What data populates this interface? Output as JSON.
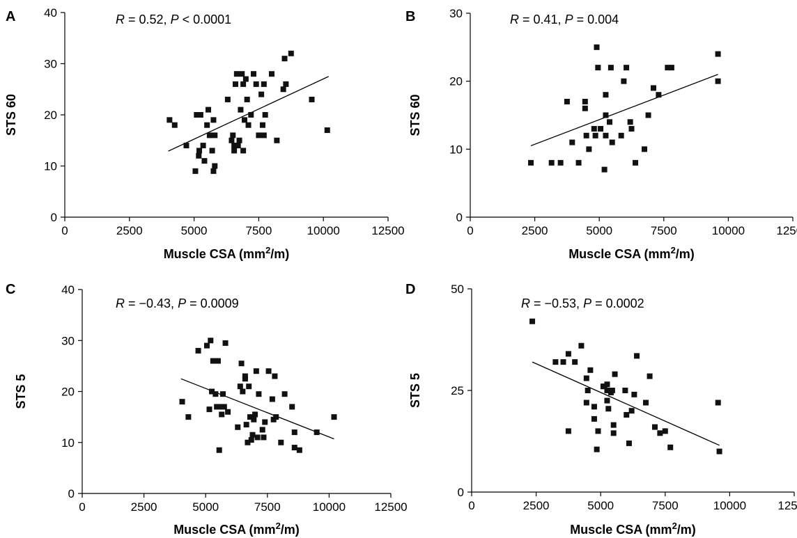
{
  "chart_data": [
    {
      "type": "scatter",
      "panel_label": "A",
      "annotation": {
        "r_label": "R",
        "r_text": " = 0.52, ",
        "p_label": "P",
        "p_text": " < 0.0001"
      },
      "xlabel": {
        "pre": "Muscle CSA (mm",
        "sup": "2",
        "post": "/m)"
      },
      "ylabel": "STS 60",
      "xlim": [
        0,
        12500
      ],
      "ylim": [
        0,
        40
      ],
      "xticks": [
        0,
        2500,
        5000,
        7500,
        10000,
        12500
      ],
      "yticks": [
        0,
        10,
        20,
        30,
        40
      ],
      "points": [
        [
          4050,
          19
        ],
        [
          4250,
          18
        ],
        [
          4700,
          14
        ],
        [
          5050,
          9
        ],
        [
          5100,
          20
        ],
        [
          5180,
          12
        ],
        [
          5200,
          13
        ],
        [
          5250,
          20
        ],
        [
          5350,
          14
        ],
        [
          5400,
          11
        ],
        [
          5500,
          18
        ],
        [
          5550,
          21
        ],
        [
          5600,
          16
        ],
        [
          5700,
          13
        ],
        [
          5750,
          19
        ],
        [
          5750,
          9
        ],
        [
          5800,
          10
        ],
        [
          5800,
          16
        ],
        [
          6300,
          23
        ],
        [
          6450,
          15
        ],
        [
          6500,
          16
        ],
        [
          6550,
          14
        ],
        [
          6550,
          13
        ],
        [
          6600,
          26
        ],
        [
          6650,
          28
        ],
        [
          6700,
          14
        ],
        [
          6750,
          15
        ],
        [
          6800,
          21
        ],
        [
          6850,
          28
        ],
        [
          6900,
          26
        ],
        [
          6900,
          13
        ],
        [
          6950,
          19
        ],
        [
          7000,
          27
        ],
        [
          7050,
          23
        ],
        [
          7100,
          18
        ],
        [
          7200,
          20
        ],
        [
          7300,
          28
        ],
        [
          7400,
          26
        ],
        [
          7500,
          16
        ],
        [
          7600,
          24
        ],
        [
          7650,
          18
        ],
        [
          7700,
          16
        ],
        [
          7750,
          20
        ],
        [
          7700,
          26
        ],
        [
          8000,
          28
        ],
        [
          8200,
          15
        ],
        [
          8450,
          25
        ],
        [
          8500,
          31
        ],
        [
          8550,
          26
        ],
        [
          8750,
          32
        ],
        [
          9550,
          23
        ],
        [
          10150,
          17
        ]
      ],
      "fit": {
        "x": [
          4000,
          10200
        ],
        "y": [
          12.9,
          27.5
        ]
      }
    },
    {
      "type": "scatter",
      "panel_label": "B",
      "annotation": {
        "r_label": "R",
        "r_text": " = 0.41, ",
        "p_label": "P",
        "p_text": " = 0.004"
      },
      "xlabel": {
        "pre": "Muscle CSA (mm",
        "sup": "2",
        "post": "/m)"
      },
      "ylabel": "STS 60",
      "xlim": [
        0,
        12500
      ],
      "ylim": [
        0,
        30
      ],
      "xticks": [
        0,
        2500,
        5000,
        7500,
        10000,
        12500
      ],
      "yticks": [
        0,
        10,
        20,
        30
      ],
      "points": [
        [
          2350,
          8
        ],
        [
          3150,
          8
        ],
        [
          3500,
          8
        ],
        [
          3750,
          17
        ],
        [
          3950,
          11
        ],
        [
          4200,
          8
        ],
        [
          4450,
          17
        ],
        [
          4450,
          16
        ],
        [
          4500,
          12
        ],
        [
          4600,
          10
        ],
        [
          4800,
          13
        ],
        [
          4850,
          12
        ],
        [
          4900,
          25
        ],
        [
          4950,
          22
        ],
        [
          5050,
          13
        ],
        [
          5200,
          7
        ],
        [
          5250,
          15
        ],
        [
          5250,
          18
        ],
        [
          5250,
          12
        ],
        [
          5400,
          14
        ],
        [
          5450,
          22
        ],
        [
          5500,
          11
        ],
        [
          5850,
          12
        ],
        [
          5950,
          20
        ],
        [
          6050,
          22
        ],
        [
          6200,
          14
        ],
        [
          6250,
          13
        ],
        [
          6400,
          8
        ],
        [
          6750,
          10
        ],
        [
          6900,
          15
        ],
        [
          7100,
          19
        ],
        [
          7300,
          18
        ],
        [
          7650,
          22
        ],
        [
          7800,
          22
        ],
        [
          9600,
          24
        ],
        [
          9600,
          20
        ]
      ],
      "fit": {
        "x": [
          2350,
          9600
        ],
        "y": [
          10.5,
          21.0
        ]
      }
    },
    {
      "type": "scatter",
      "panel_label": "C",
      "annotation": {
        "r_label": "R",
        "r_text": " = −0.43, ",
        "p_label": "P",
        "p_text": " = 0.0009"
      },
      "xlabel": {
        "pre": "Muscle CSA (mm",
        "sup": "2",
        "post": "/m)"
      },
      "ylabel": "STS 5",
      "xlim": [
        0,
        12500
      ],
      "ylim": [
        0,
        40
      ],
      "xticks": [
        0,
        2500,
        5000,
        7500,
        10000,
        12500
      ],
      "yticks": [
        0,
        10,
        20,
        30,
        40
      ],
      "points": [
        [
          4050,
          18
        ],
        [
          4300,
          15
        ],
        [
          4700,
          28
        ],
        [
          5050,
          29
        ],
        [
          5150,
          16.5
        ],
        [
          5200,
          30
        ],
        [
          5250,
          20
        ],
        [
          5300,
          26
        ],
        [
          5400,
          19.5
        ],
        [
          5450,
          17
        ],
        [
          5500,
          26
        ],
        [
          5550,
          8.5
        ],
        [
          5600,
          17
        ],
        [
          5650,
          15.5
        ],
        [
          5700,
          19.5
        ],
        [
          5750,
          17
        ],
        [
          5800,
          29.5
        ],
        [
          5900,
          16
        ],
        [
          6300,
          13
        ],
        [
          6400,
          21
        ],
        [
          6450,
          25.5
        ],
        [
          6500,
          20
        ],
        [
          6600,
          23
        ],
        [
          6600,
          22.5
        ],
        [
          6650,
          13.5
        ],
        [
          6700,
          10
        ],
        [
          6750,
          21
        ],
        [
          6800,
          15
        ],
        [
          6850,
          10.5
        ],
        [
          6900,
          11.5
        ],
        [
          6950,
          14.5
        ],
        [
          7000,
          15.5
        ],
        [
          7050,
          24
        ],
        [
          7100,
          11
        ],
        [
          7150,
          19.5
        ],
        [
          7300,
          12.5
        ],
        [
          7350,
          11
        ],
        [
          7400,
          14
        ],
        [
          7550,
          24
        ],
        [
          7700,
          18.5
        ],
        [
          7750,
          14.5
        ],
        [
          7800,
          23
        ],
        [
          7850,
          15
        ],
        [
          8050,
          10
        ],
        [
          8200,
          19.5
        ],
        [
          8500,
          17
        ],
        [
          8600,
          12
        ],
        [
          8600,
          9
        ],
        [
          8800,
          8.5
        ],
        [
          9500,
          12
        ],
        [
          10200,
          15
        ]
      ],
      "fit": {
        "x": [
          4000,
          10200
        ],
        "y": [
          22.5,
          10.7
        ]
      }
    },
    {
      "type": "scatter",
      "panel_label": "D",
      "annotation": {
        "r_label": "R",
        "r_text": " = −0.53, ",
        "p_label": "P",
        "p_text": " = 0.0002"
      },
      "xlabel": {
        "pre": "Muscle CSA (mm",
        "sup": "2",
        "post": "/m)"
      },
      "ylabel": "STS 5",
      "xlim": [
        0,
        12500
      ],
      "ylim": [
        0,
        50
      ],
      "xticks": [
        0,
        2500,
        5000,
        7500,
        10000,
        12500
      ],
      "yticks": [
        0,
        25,
        50
      ],
      "points": [
        [
          2350,
          42
        ],
        [
          3250,
          32
        ],
        [
          3550,
          32
        ],
        [
          3750,
          34
        ],
        [
          3750,
          15
        ],
        [
          4000,
          32
        ],
        [
          4250,
          36
        ],
        [
          4450,
          28
        ],
        [
          4450,
          22
        ],
        [
          4500,
          25
        ],
        [
          4600,
          30
        ],
        [
          4750,
          21
        ],
        [
          4750,
          18
        ],
        [
          4850,
          10.5
        ],
        [
          4900,
          15
        ],
        [
          5100,
          26
        ],
        [
          5150,
          26
        ],
        [
          5250,
          26.5
        ],
        [
          5250,
          25
        ],
        [
          5250,
          22.5
        ],
        [
          5300,
          20.5
        ],
        [
          5400,
          24.5
        ],
        [
          5450,
          25
        ],
        [
          5500,
          16.5
        ],
        [
          5500,
          14.5
        ],
        [
          5550,
          29
        ],
        [
          5950,
          25
        ],
        [
          6000,
          19
        ],
        [
          6100,
          12
        ],
        [
          6200,
          20
        ],
        [
          6300,
          24
        ],
        [
          6400,
          33.5
        ],
        [
          6750,
          22
        ],
        [
          6900,
          28.5
        ],
        [
          7100,
          16
        ],
        [
          7300,
          14.5
        ],
        [
          7500,
          15
        ],
        [
          7700,
          11
        ],
        [
          9550,
          22
        ],
        [
          9600,
          10
        ]
      ],
      "fit": {
        "x": [
          2350,
          9600
        ],
        "y": [
          32.0,
          11.5
        ]
      }
    }
  ]
}
